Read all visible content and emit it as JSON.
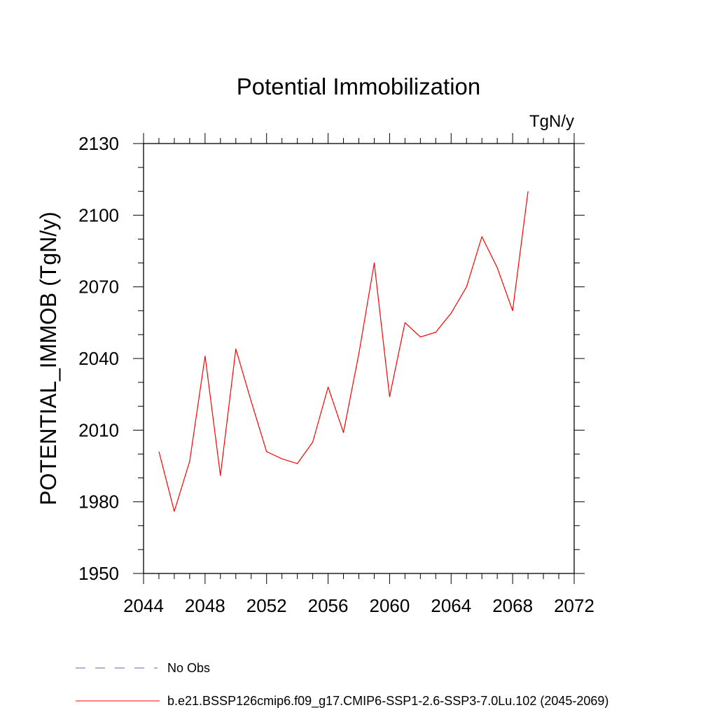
{
  "chart_data": {
    "type": "line",
    "title": "Potential Immobilization",
    "units_label": "TgN/y",
    "xlabel": "",
    "ylabel": "POTENTIAL_IMMOB  (TgN/y)",
    "xlim": [
      2044,
      2072
    ],
    "ylim": [
      1950,
      2130
    ],
    "xticks": [
      2044,
      2048,
      2052,
      2056,
      2060,
      2064,
      2068,
      2072
    ],
    "yticks": [
      1950,
      1980,
      2010,
      2040,
      2070,
      2100,
      2130
    ],
    "x_minor_step": 1,
    "y_minor_step": 10,
    "grid": false,
    "legend_placement": "bottom",
    "series": [
      {
        "name": "b.e21.BSSP126cmip6.f09_g17.CMIP6-SSP1-2.6-SSP3-7.0Lu.102 (2045-2069)",
        "color": "#ff0000",
        "dash": "solid",
        "x": [
          2045,
          2046,
          2047,
          2048,
          2049,
          2050,
          2051,
          2052,
          2053,
          2054,
          2055,
          2056,
          2057,
          2058,
          2059,
          2060,
          2061,
          2062,
          2063,
          2064,
          2065,
          2066,
          2067,
          2068,
          2069
        ],
        "values": [
          2001,
          1976,
          1997,
          2041,
          1991,
          2044,
          2022,
          2001,
          1998,
          1996,
          2005,
          2028,
          2009,
          2042,
          2080,
          2024,
          2055,
          2049,
          2051,
          2059,
          2070,
          2091,
          2078,
          2060,
          2110
        ]
      }
    ],
    "legend": [
      {
        "label": "No Obs",
        "color": "#7060a8",
        "dash": "dashed"
      },
      {
        "label": "b.e21.BSSP126cmip6.f09_g17.CMIP6-SSP1-2.6-SSP3-7.0Lu.102 (2045-2069)",
        "color": "#ff0000",
        "dash": "solid"
      }
    ]
  }
}
